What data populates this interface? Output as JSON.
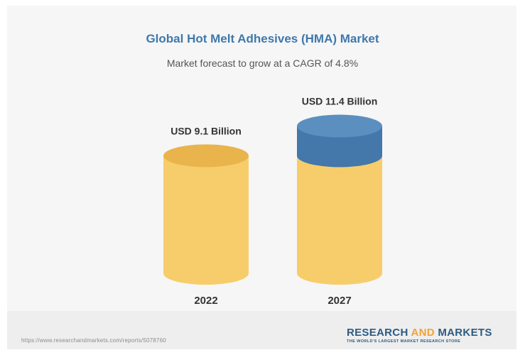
{
  "title": "Global Hot Melt Adhesives (HMA) Market",
  "subtitle": "Market forecast to grow at a CAGR of 4.8%",
  "source_url": "https://www.researchandmarkets.com/reports/5078760",
  "brand": {
    "part1": "RESEARCH ",
    "part2": "AND",
    "part3": " MARKETS",
    "tagline": "THE WORLD'S LARGEST MARKET RESEARCH STORE"
  },
  "colors": {
    "base": "#f7cd6b",
    "growth": "#4477aa",
    "title": "#3f78ac",
    "accent": "#f2a23a"
  },
  "chart_data": {
    "type": "bar",
    "style": "cylinder",
    "title": "Global Hot Melt Adhesives (HMA) Market",
    "subtitle": "Market forecast to grow at a CAGR of 4.8%",
    "categories": [
      "2022",
      "2027"
    ],
    "values": [
      9.1,
      11.4
    ],
    "value_labels": [
      "USD 9.1 Billion",
      "USD 11.4 Billion"
    ],
    "unit": "USD Billion",
    "base_segment_value": 9.1,
    "grid": false,
    "legend": "none"
  }
}
